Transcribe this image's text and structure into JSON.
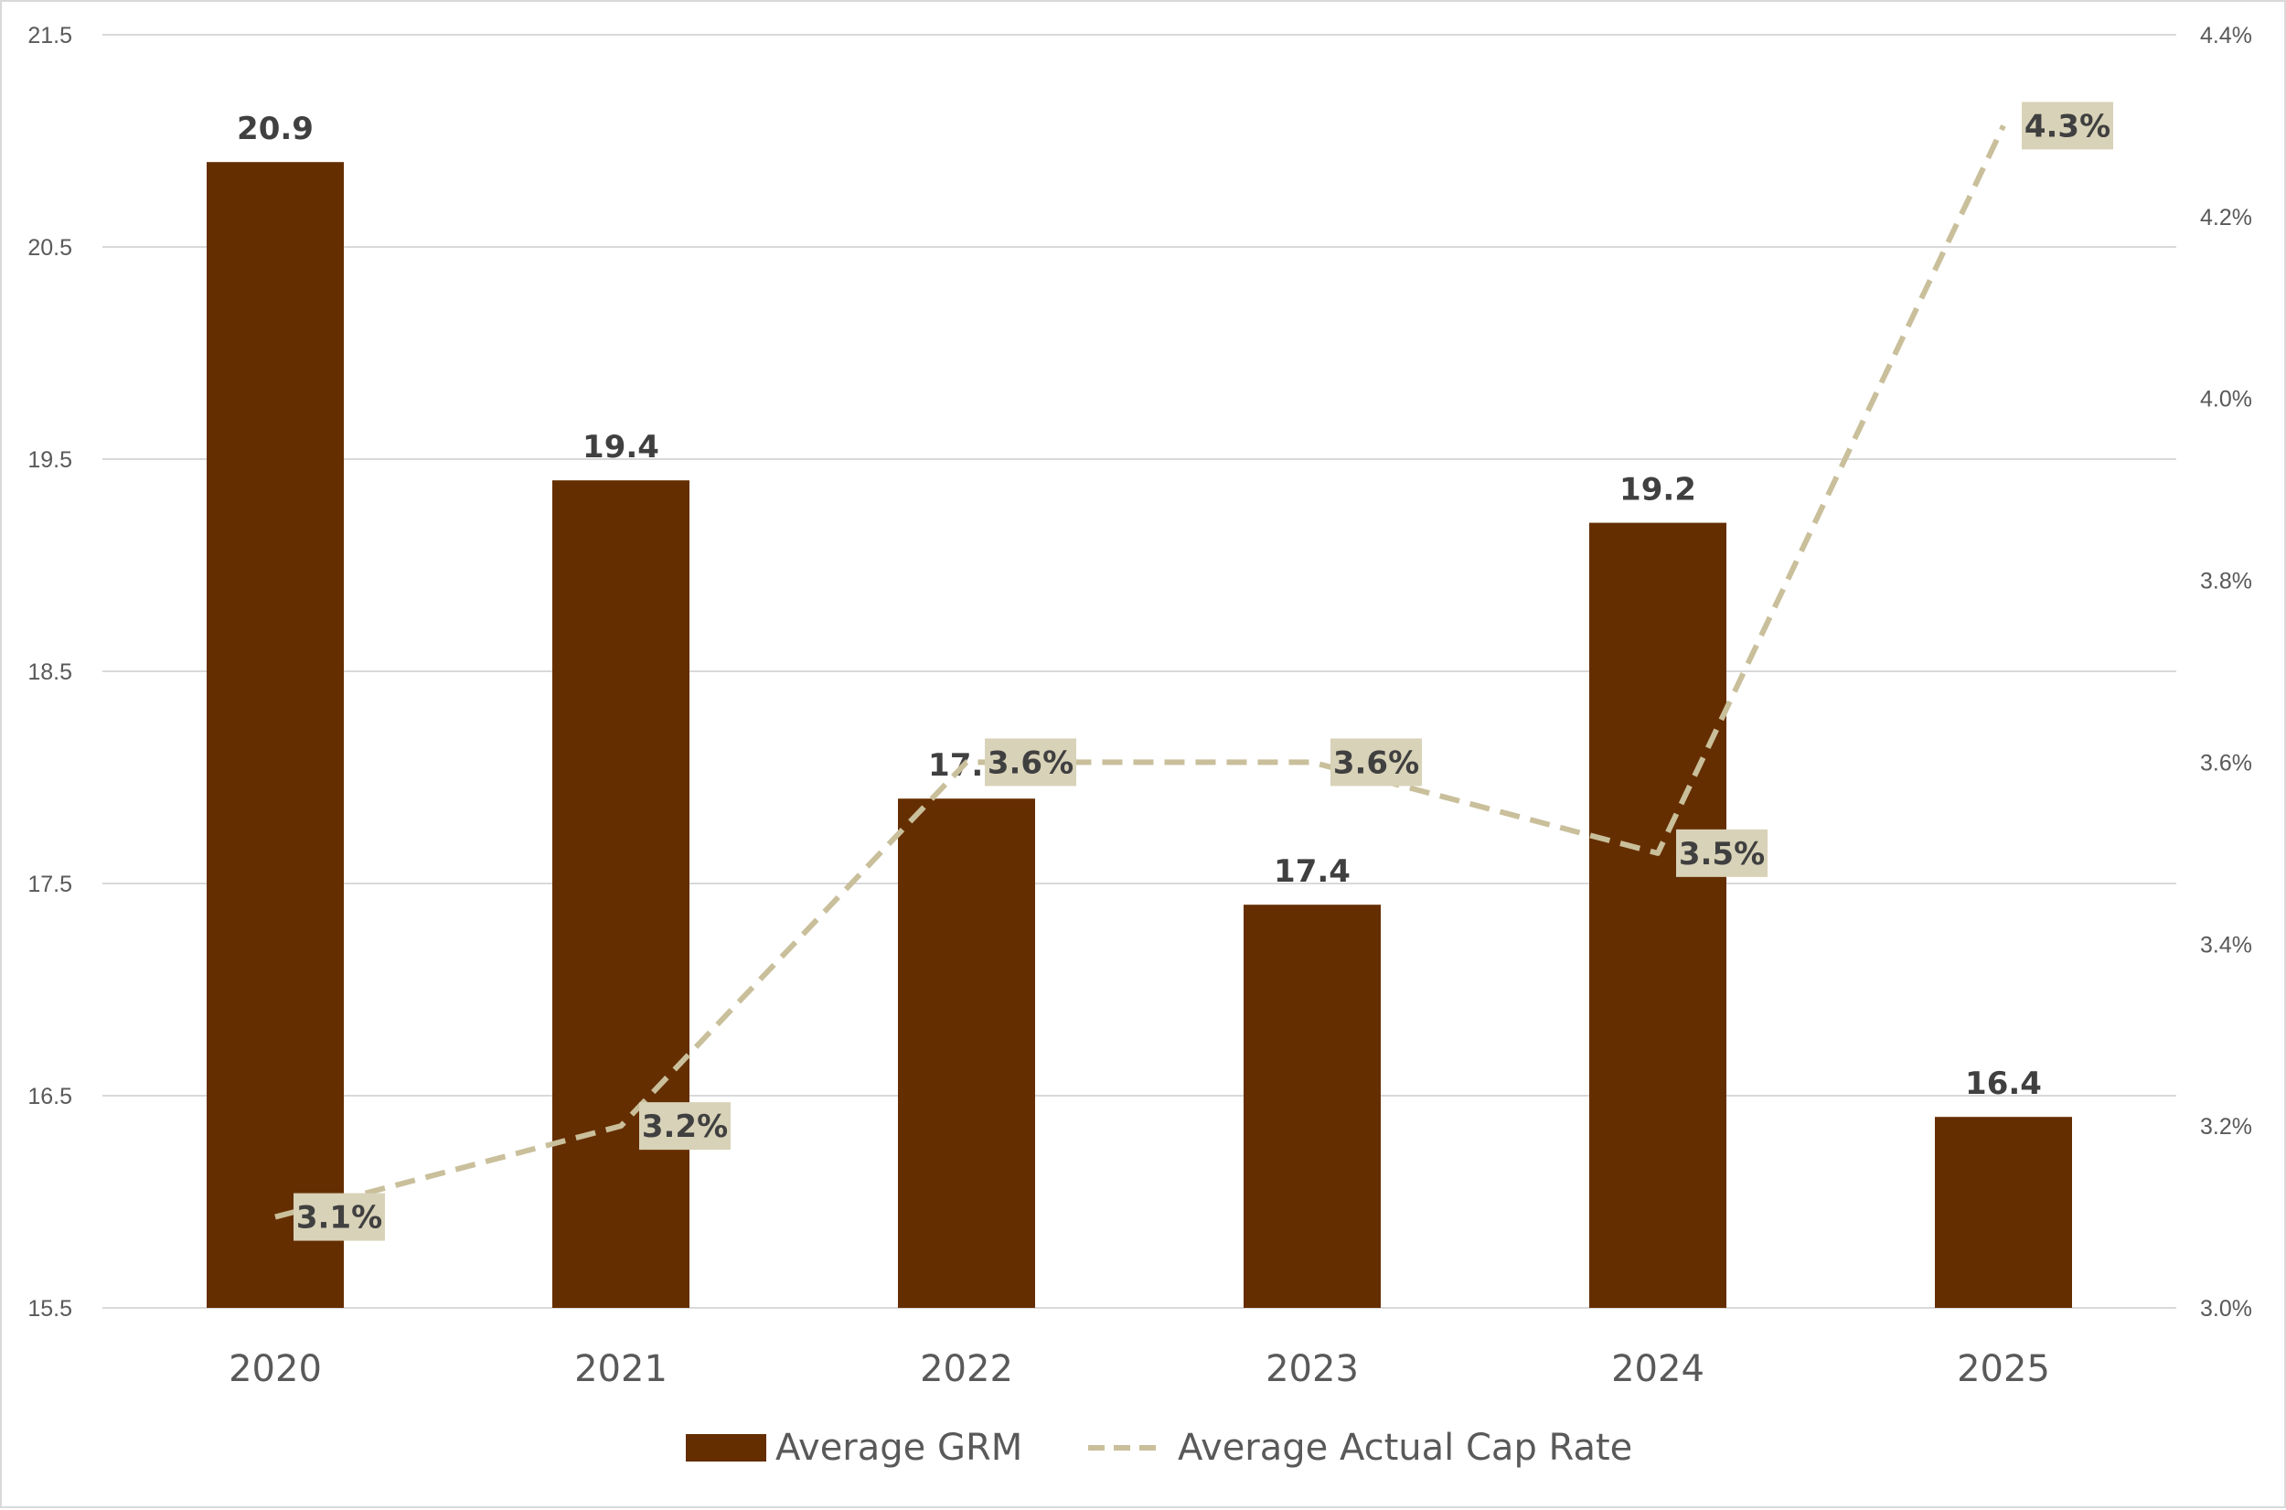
{
  "chart_data": {
    "type": "bar",
    "categories": [
      "2020",
      "2021",
      "2022",
      "2023",
      "2024",
      "2025"
    ],
    "series": [
      {
        "name": "Average GRM",
        "type": "bar",
        "axis": "left",
        "values": [
          20.9,
          19.4,
          17.9,
          17.4,
          19.2,
          16.4
        ],
        "labels": [
          "20.9",
          "19.4",
          "17.9",
          "17.4",
          "19.2",
          "16.4"
        ],
        "color": "#652e00"
      },
      {
        "name": "Average Actual Cap Rate",
        "type": "line",
        "style": "dashed",
        "axis": "right",
        "values": [
          3.1,
          3.2,
          3.6,
          3.6,
          3.5,
          4.3
        ],
        "labels": [
          "3.1%",
          "3.2%",
          "3.6%",
          "3.6%",
          "3.5%",
          "4.3%"
        ],
        "color": "#c9bf9b",
        "label_background": "#d8d2b8"
      }
    ],
    "y_left": {
      "min": 15.5,
      "max": 21.5,
      "ticks": [
        "15.5",
        "16.5",
        "17.5",
        "18.5",
        "19.5",
        "20.5",
        "21.5"
      ]
    },
    "y_right": {
      "min": 3.0,
      "max": 4.4,
      "ticks": [
        "3.0%",
        "3.2%",
        "3.4%",
        "3.6%",
        "3.8%",
        "4.0%",
        "4.2%",
        "4.4%"
      ]
    },
    "grid": true,
    "legend": "bottom-center",
    "title": "",
    "xlabel": "",
    "ylabel": ""
  },
  "colors": {
    "gridline": "#d9d9d9",
    "tick_text": "#595959",
    "label_text": "#404040"
  }
}
